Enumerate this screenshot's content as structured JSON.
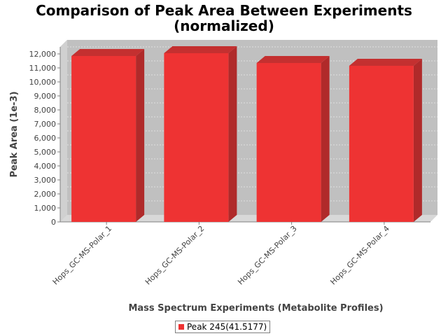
{
  "chart_data": {
    "type": "bar",
    "title": "Comparison of Peak Area Between Experiments",
    "subtitle": "(normalized)",
    "xlabel": "Mass Spectrum Experiments (Metabolite Profiles)",
    "ylabel": "Peak Area (1e-3)",
    "categories": [
      "Hops_GC-MS-Polar_1",
      "Hops_GC-MS-Polar_2",
      "Hops_GC-MS-Polar_3",
      "Hops_GC-MS-Polar_4"
    ],
    "series": [
      {
        "name": "Peak 245(41.5177)",
        "values": [
          11850,
          12050,
          11350,
          11150
        ]
      }
    ],
    "ylim": [
      0,
      12000
    ],
    "yticks": [
      0,
      1000,
      2000,
      3000,
      4000,
      5000,
      6000,
      7000,
      8000,
      9000,
      10000,
      11000,
      12000
    ],
    "ytick_labels": [
      "0",
      "1,000",
      "2,000",
      "3,000",
      "4,000",
      "5,000",
      "6,000",
      "7,000",
      "8,000",
      "9,000",
      "10,000",
      "11,000",
      "12,000"
    ],
    "grid": true,
    "legend_position": "bottom",
    "colors": {
      "bar": "#ee3333",
      "bar_side": "#b02a2a",
      "bar_top": "#c43030",
      "plot_bg": "#c0c0c0",
      "floor": "#d8d8d8"
    }
  }
}
